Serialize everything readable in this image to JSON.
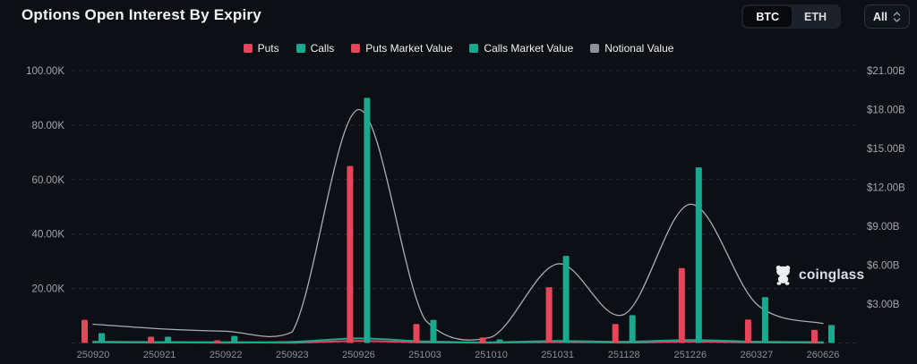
{
  "header": {
    "title": "Options Open Interest By Expiry"
  },
  "controls": {
    "asset_toggle": {
      "options": [
        "BTC",
        "ETH"
      ],
      "selected": "BTC"
    },
    "range_select": {
      "value": "All"
    }
  },
  "legend": [
    {
      "label": "Puts",
      "color": "#e8445a"
    },
    {
      "label": "Calls",
      "color": "#19a98e"
    },
    {
      "label": "Puts Market Value",
      "color": "#e8445a"
    },
    {
      "label": "Calls Market Value",
      "color": "#19a98e"
    },
    {
      "label": "Notional Value",
      "color": "#8d9199"
    }
  ],
  "watermark": {
    "icon": "coinglass-bear-icon",
    "text": "coinglass"
  },
  "chart_data": {
    "type": "combo-bar-line",
    "categories": [
      "250920",
      "250921",
      "250922",
      "250923",
      "250926",
      "251003",
      "251010",
      "251031",
      "251128",
      "251226",
      "260327",
      "260626"
    ],
    "series": [
      {
        "name": "Puts",
        "type": "bar",
        "axis": "left",
        "color": "#e8445a",
        "values": [
          8500,
          2300,
          1000,
          200,
          65000,
          7000,
          2000,
          20500,
          7000,
          27500,
          8600,
          4800
        ]
      },
      {
        "name": "Calls",
        "type": "bar",
        "axis": "left",
        "color": "#19a98e",
        "values": [
          3600,
          2300,
          2600,
          300,
          90000,
          8500,
          1300,
          32000,
          10200,
          64500,
          16800,
          6600
        ]
      },
      {
        "name": "Puts Market Value",
        "type": "line",
        "axis": "right",
        "unit": "USD billions",
        "color": "#e8445a",
        "values": [
          0.05,
          0.03,
          0.02,
          0.02,
          0.15,
          0.04,
          0.02,
          0.07,
          0.03,
          0.1,
          0.04,
          0.02
        ]
      },
      {
        "name": "Calls Market Value",
        "type": "line",
        "axis": "right",
        "unit": "USD billions",
        "color": "#19a98e",
        "values": [
          0.1,
          0.07,
          0.06,
          0.08,
          0.35,
          0.12,
          0.05,
          0.15,
          0.1,
          0.22,
          0.1,
          0.06
        ]
      },
      {
        "name": "Notional Value",
        "type": "line",
        "axis": "right",
        "unit": "USD billions",
        "color": "#a9adb5",
        "values": [
          1.45,
          1.1,
          0.9,
          0.85,
          18.0,
          1.8,
          0.45,
          6.1,
          2.2,
          10.7,
          3.0,
          1.5
        ]
      }
    ],
    "left_axis": {
      "tick_labels": [
        "20.00K",
        "40.00K",
        "60.00K",
        "80.00K",
        "100.00K"
      ],
      "tick_values": [
        20000,
        40000,
        60000,
        80000,
        100000
      ],
      "max": 100000
    },
    "right_axis": {
      "tick_labels": [
        "$3.00B",
        "$6.00B",
        "$9.00B",
        "$12.00B",
        "$15.00B",
        "$18.00B",
        "$21.00B"
      ],
      "tick_values": [
        3,
        6,
        9,
        12,
        15,
        18,
        21
      ],
      "max": 21
    },
    "legend_position": "top-center",
    "grid": "horizontal-dashed"
  }
}
